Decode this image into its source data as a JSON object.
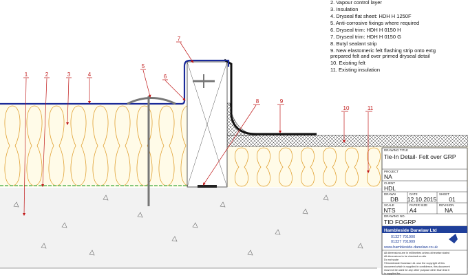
{
  "legend": [
    "2. Vapour control layer",
    "3. Insulation",
    "4. Dryseal flat sheet: HDH H 1250F",
    "5. Anti-corrosive fixings where required",
    "6. Dryseal trim: HDH H 0150 H",
    "7. Dryseal trim: HDH H 0150 G",
    "8. Butyl sealant strip",
    "9. New elastomeric felt flashing strip onto extg",
    "prepared felt and over primed dryseal detail",
    "10. Existing felt",
    "11. Existing insulation"
  ],
  "callouts": [
    "1",
    "2",
    "3",
    "4",
    "5",
    "6",
    "7",
    "8",
    "9",
    "10",
    "11"
  ],
  "title_block": {
    "drawing_title_label": "DRAWING TITLE",
    "drawing_title": "Tie-In Detail- Felt over GRP",
    "project_label": "PROJECT",
    "project": "NA",
    "client_label": "CLIENT",
    "client": "HDL",
    "drawn_label": "DRAWN",
    "drawn": "DB",
    "date_label": "DATE",
    "date": "12.10.2015",
    "sheet_label": "SHEET",
    "sheet": "01",
    "scale_label": "SCALE",
    "scale": "NTS",
    "paper_label": "PAPER SIZE",
    "paper": "A4",
    "revision_label": "REVISION",
    "revision": "NA",
    "drawing_no_label": "DRAWING NO.",
    "drawing_no": "TID FOGRP",
    "company": "Hambleside Danelaw Ltd",
    "phone": "01327 701900",
    "fax": "01327 701909",
    "web": "www.hambleside-danelaw.co.uk",
    "notes": [
      "All dimensions are in millimetres unless otherwise stated",
      "All dimensions to be checked on site",
      "Do not scale",
      "©Hambleside Danelaw Ltd. own the copyright of this",
      "document which is supplied in confidence, this document",
      "must not be used for any other purpose other than that it",
      "is supplied for."
    ]
  }
}
